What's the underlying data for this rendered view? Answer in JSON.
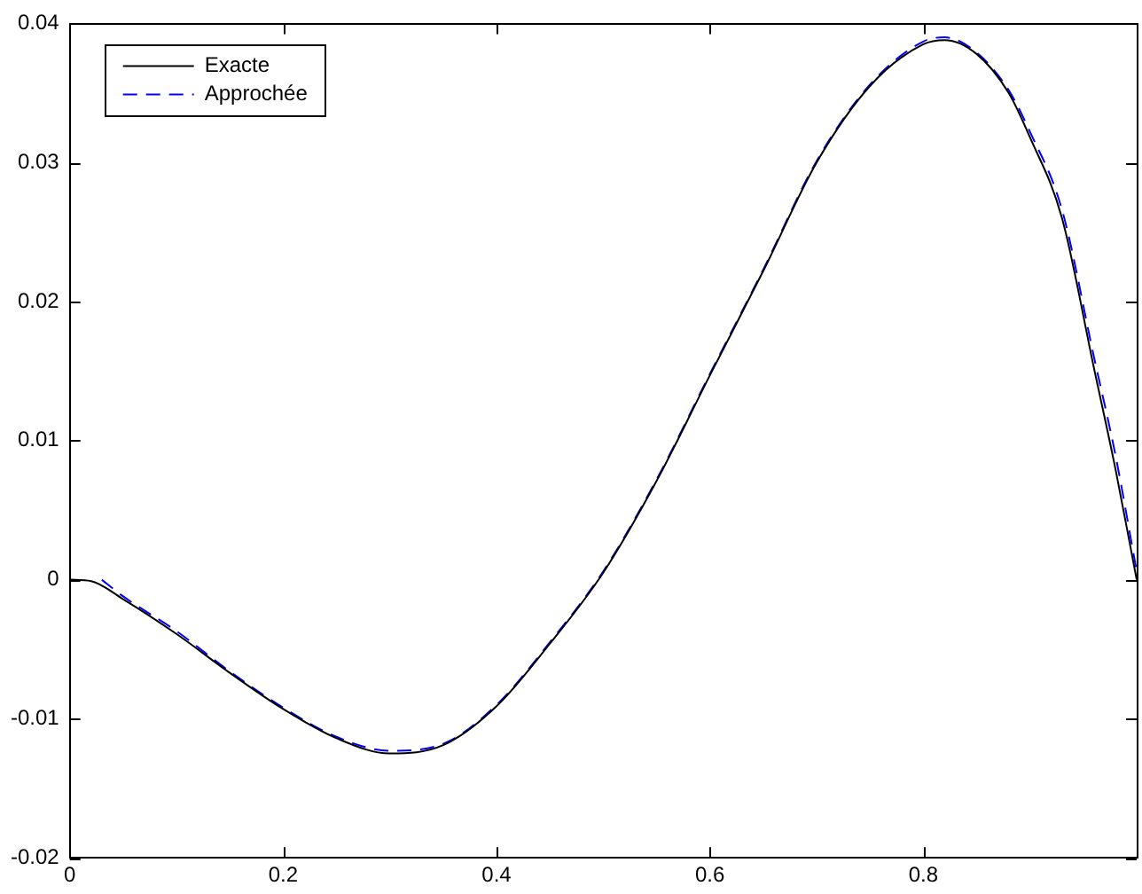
{
  "chart_data": {
    "type": "line",
    "xlim": [
      0,
      1
    ],
    "xticks": [
      0,
      0.2,
      0.4,
      0.6,
      0.8,
      {
        "value": 1,
        "label": null
      }
    ],
    "ylim": [
      -0.02,
      0.04
    ],
    "yticks": [
      -0.02,
      -0.01,
      0,
      0.01,
      0.02,
      0.03,
      0.04
    ],
    "grid": false,
    "legend": "top left",
    "marker": "none",
    "series": [
      {
        "name": "Exacte",
        "color": "#000000",
        "line_style": "solid",
        "x": [
          0,
          0.02,
          0.05,
          0.1,
          0.15,
          0.2,
          0.25,
          0.3,
          0.35,
          0.4,
          0.45,
          0.5,
          0.55,
          0.6,
          0.65,
          0.7,
          0.75,
          0.8,
          0.82,
          0.85,
          0.88,
          0.9,
          0.93,
          0.96,
          0.98,
          1
        ],
        "values": [
          0,
          -0.0001,
          -0.0014,
          -0.0039,
          -0.0067,
          -0.0093,
          -0.0114,
          -0.0125,
          -0.0119,
          -0.0091,
          -0.0046,
          0.0005,
          0.0071,
          0.0147,
          0.0222,
          0.03,
          0.0355,
          0.0385,
          0.0388,
          0.0378,
          0.035,
          0.0318,
          0.026,
          0.0152,
          0.008,
          0
        ]
      },
      {
        "name": "Approchée",
        "color": "#0000ff",
        "line_style": "dashed",
        "x": [
          0.03,
          0.05,
          0.1,
          0.15,
          0.2,
          0.25,
          0.3,
          0.35,
          0.4,
          0.45,
          0.5,
          0.55,
          0.6,
          0.65,
          0.7,
          0.75,
          0.8,
          0.82,
          0.85,
          0.88,
          0.9,
          0.93,
          0.96,
          0.98,
          1
        ],
        "values": [
          0,
          -0.0012,
          -0.0037,
          -0.0066,
          -0.0092,
          -0.0113,
          -0.0123,
          -0.0118,
          -0.009,
          -0.0045,
          0.0006,
          0.0072,
          0.0148,
          0.0223,
          0.0301,
          0.0356,
          0.0387,
          0.039,
          0.0379,
          0.0352,
          0.0322,
          0.0266,
          0.016,
          0.009,
          0.0006
        ]
      }
    ]
  }
}
